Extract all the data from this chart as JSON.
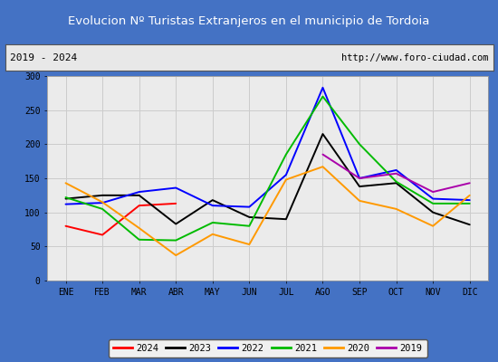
{
  "title": "Evolucion Nº Turistas Extranjeros en el municipio de Tordoia",
  "subtitle_left": "2019 - 2024",
  "subtitle_right": "http://www.foro-ciudad.com",
  "title_bg_color": "#4472c4",
  "title_text_color": "#ffffff",
  "subtitle_bg_color": "#e8e8e8",
  "subtitle_border_color": "#555555",
  "subtitle_text_color": "#000000",
  "months": [
    "ENE",
    "FEB",
    "MAR",
    "ABR",
    "MAY",
    "JUN",
    "JUL",
    "AGO",
    "SEP",
    "OCT",
    "NOV",
    "DIC"
  ],
  "ylim": [
    0,
    300
  ],
  "yticks": [
    0,
    50,
    100,
    150,
    200,
    250,
    300
  ],
  "series": {
    "2024": {
      "color": "#ff0000",
      "values": [
        80,
        67,
        110,
        113,
        null,
        null,
        null,
        null,
        null,
        null,
        null,
        null
      ]
    },
    "2023": {
      "color": "#000000",
      "values": [
        120,
        125,
        125,
        83,
        118,
        93,
        90,
        215,
        138,
        143,
        100,
        82
      ]
    },
    "2022": {
      "color": "#0000ff",
      "values": [
        112,
        114,
        130,
        136,
        110,
        108,
        155,
        283,
        150,
        162,
        120,
        118
      ]
    },
    "2021": {
      "color": "#00bb00",
      "values": [
        122,
        105,
        60,
        59,
        85,
        80,
        185,
        270,
        200,
        145,
        113,
        113
      ]
    },
    "2020": {
      "color": "#ff9900",
      "values": [
        143,
        115,
        77,
        37,
        68,
        53,
        148,
        167,
        117,
        105,
        80,
        125
      ]
    },
    "2019": {
      "color": "#aa00aa",
      "values": [
        null,
        null,
        null,
        null,
        null,
        null,
        null,
        185,
        150,
        157,
        130,
        143
      ]
    }
  },
  "legend_order": [
    "2024",
    "2023",
    "2022",
    "2021",
    "2020",
    "2019"
  ],
  "grid_color": "#cccccc",
  "plot_bg_color": "#ebebeb",
  "chart_bg_color": "#ffffff",
  "outer_border_color": "#4472c4"
}
